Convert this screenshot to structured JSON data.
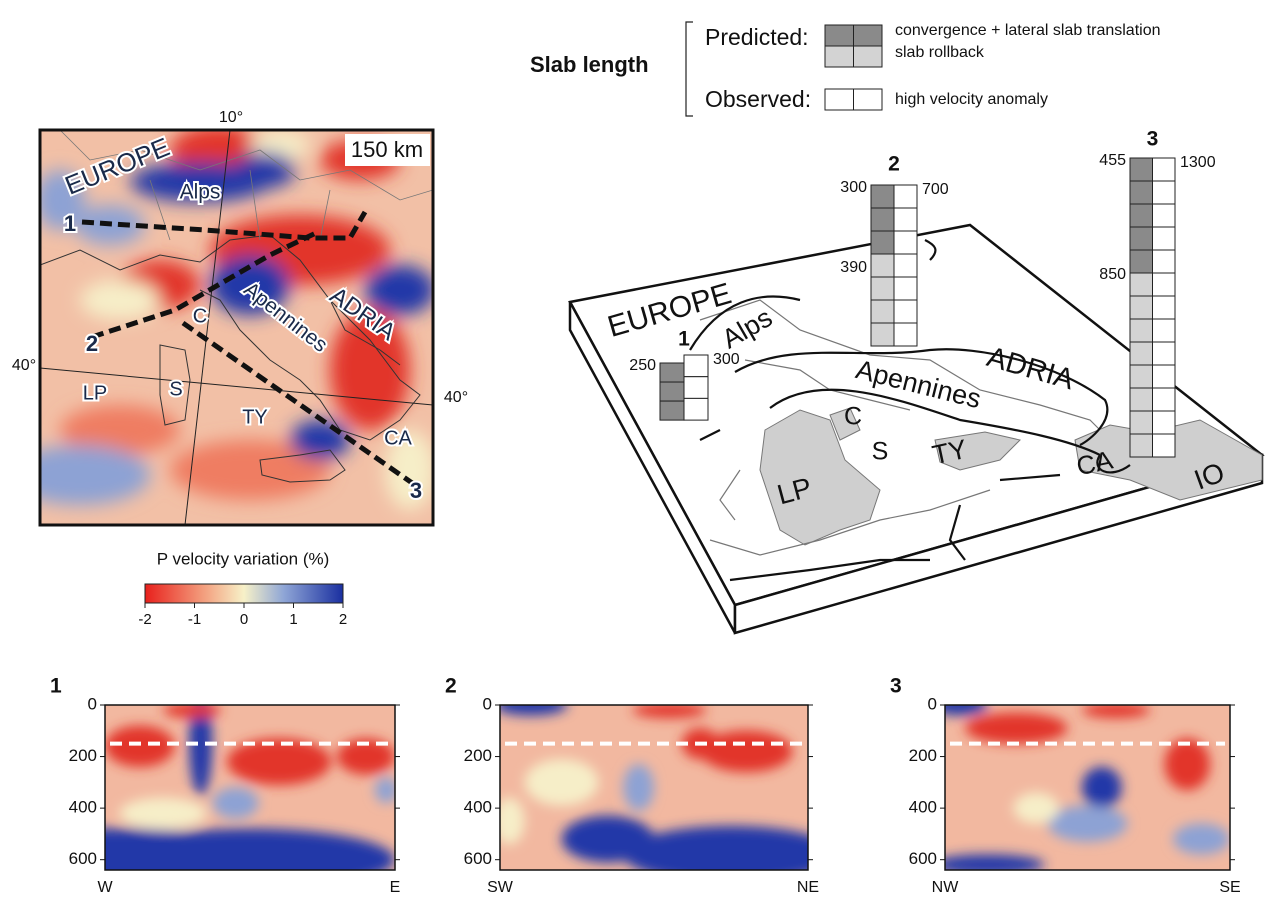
{
  "legend": {
    "title": "Slab length",
    "predicted": "Predicted:",
    "observed": "Observed:",
    "items": [
      "convergence + lateral slab translation",
      "slab rollback",
      "high velocity anomaly"
    ]
  },
  "map": {
    "depth": {
      "value": 150,
      "label": "150 km"
    },
    "lon_label": "10°",
    "lat_labels": [
      "40°",
      "40°"
    ],
    "regions": [
      "EUROPE",
      "Alps",
      "Apennines",
      "ADRIA",
      "LP",
      "S",
      "C",
      "TY",
      "CA"
    ],
    "profiles": [
      "1",
      "2",
      "3"
    ]
  },
  "colorbar": {
    "title": "P velocity variation (%)",
    "lim": [
      -2,
      2
    ],
    "ticks": [
      -2,
      -1,
      0,
      1,
      2
    ]
  },
  "block": {
    "regions": [
      "EUROPE",
      "Alps",
      "ADRIA",
      "Apennines",
      "C",
      "S",
      "TY",
      "CA",
      "LP",
      "IO"
    ],
    "columns": [
      {
        "label": "1",
        "left_top": "250",
        "right_top": "300"
      },
      {
        "label": "2",
        "left_top": "300",
        "left_mid": "390",
        "right_top": "700"
      },
      {
        "label": "3",
        "left_top": "455",
        "left_mid": "850",
        "right_top": "1300"
      }
    ]
  },
  "sections": [
    {
      "label": "1",
      "left": "W",
      "right": "E",
      "ylim": [
        0,
        640
      ],
      "yticks": [
        0,
        200,
        400,
        600
      ]
    },
    {
      "label": "2",
      "left": "SW",
      "right": "NE",
      "ylim": [
        0,
        640
      ],
      "yticks": [
        0,
        200,
        400,
        600
      ]
    },
    {
      "label": "3",
      "left": "NW",
      "right": "SE",
      "ylim": [
        0,
        640
      ],
      "yticks": [
        0,
        200,
        400,
        600
      ]
    }
  ]
}
